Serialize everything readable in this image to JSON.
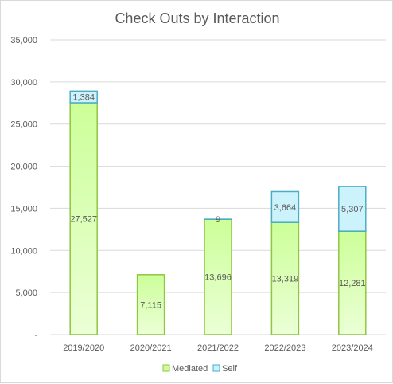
{
  "chart_data": {
    "type": "bar",
    "stacked": true,
    "title": "Check Outs by Interaction",
    "xlabel": "",
    "ylabel": "",
    "categories": [
      "2019/2020",
      "2020/2021",
      "2021/2022",
      "2022/2023",
      "2023/2024"
    ],
    "series": [
      {
        "name": "Mediated",
        "values": [
          27527,
          7115,
          13696,
          13319,
          12281
        ],
        "labels": [
          "27,527",
          "7,115",
          "13,696",
          "13,319",
          "12,281"
        ]
      },
      {
        "name": "Self",
        "values": [
          1384,
          0,
          9,
          3664,
          5307
        ],
        "labels": [
          "1,384",
          "",
          "9",
          "3,664",
          "5,307"
        ]
      }
    ],
    "ylim": [
      0,
      35000
    ],
    "yticks": [
      0,
      5000,
      10000,
      15000,
      20000,
      25000,
      30000,
      35000
    ],
    "ytick_labels": [
      "-",
      "5,000",
      "10,000",
      "15,000",
      "20,000",
      "25,000",
      "30,000",
      "35,000"
    ],
    "grid": true,
    "legend": "bottom",
    "colors": {
      "mediated_fill_top": "#ccff99",
      "mediated_fill_bottom": "#ebffd6",
      "mediated_stroke": "#8fc63f",
      "self_fill": "#ccf2fb",
      "self_stroke": "#4bacc6"
    }
  }
}
